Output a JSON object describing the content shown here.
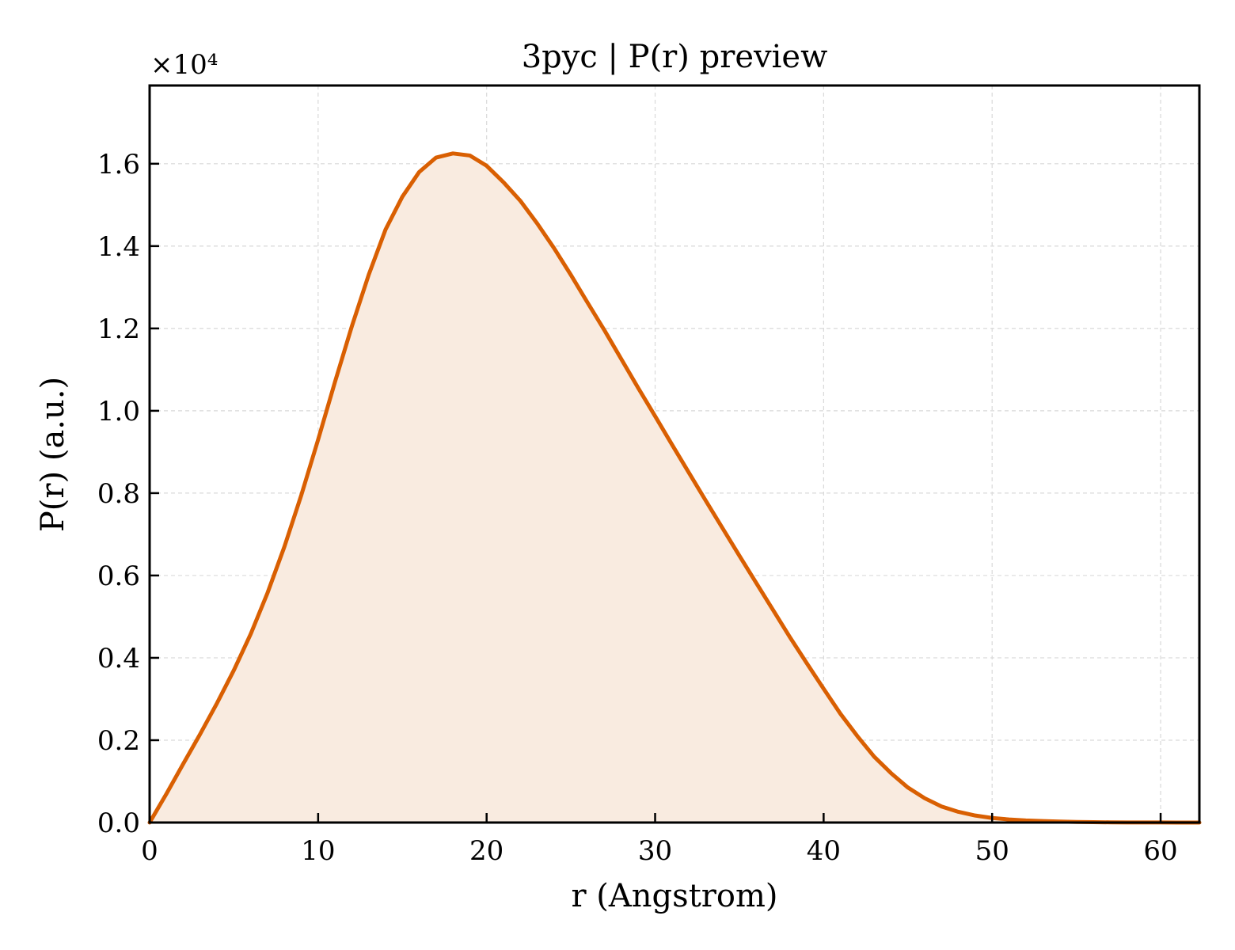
{
  "chart_data": {
    "type": "area",
    "title": "3pyc | P(r) preview",
    "xlabel": "r (Angstrom)",
    "ylabel": "P(r) (a.u.)",
    "y_multiplier_label": "×10⁴",
    "xlim": [
      0,
      62.3
    ],
    "ylim": [
      0,
      17900
    ],
    "x_ticks": [
      0,
      10,
      20,
      30,
      40,
      50,
      60
    ],
    "x_tick_labels": [
      "0",
      "10",
      "20",
      "30",
      "40",
      "50",
      "60"
    ],
    "y_ticks": [
      0,
      2000,
      4000,
      6000,
      8000,
      10000,
      12000,
      14000,
      16000
    ],
    "y_tick_labels": [
      "0.0",
      "0.2",
      "0.4",
      "0.6",
      "0.8",
      "1.0",
      "1.2",
      "1.4",
      "1.6"
    ],
    "grid": true,
    "colors": {
      "line": "#d95f02",
      "fill": "#f9ebe0",
      "grid": "#d9d9d9",
      "axes": "#000000"
    },
    "series": [
      {
        "x": [
          0,
          1,
          2,
          3,
          4,
          5,
          6,
          7,
          8,
          9,
          10,
          11,
          12,
          13,
          14,
          15,
          16,
          17,
          18,
          19,
          20,
          21,
          22,
          23,
          24,
          25,
          26,
          27,
          28,
          29,
          30,
          31,
          32,
          33,
          34,
          35,
          36,
          37,
          38,
          39,
          40,
          41,
          42,
          43,
          44,
          45,
          46,
          47,
          48,
          49,
          50,
          51,
          52,
          53,
          54,
          55,
          56,
          57,
          58,
          59,
          60,
          61,
          62.3
        ],
        "y": [
          0,
          700,
          1430,
          2150,
          2900,
          3700,
          4580,
          5580,
          6700,
          7950,
          9300,
          10700,
          12050,
          13300,
          14400,
          15200,
          15800,
          16150,
          16250,
          16200,
          15950,
          15550,
          15100,
          14550,
          13950,
          13300,
          12620,
          11950,
          11250,
          10550,
          9870,
          9180,
          8500,
          7820,
          7150,
          6480,
          5820,
          5160,
          4500,
          3870,
          3250,
          2640,
          2100,
          1600,
          1200,
          850,
          590,
          390,
          260,
          170,
          110,
          75,
          50,
          35,
          25,
          15,
          10,
          5,
          3,
          2,
          2,
          1,
          0
        ]
      }
    ]
  }
}
